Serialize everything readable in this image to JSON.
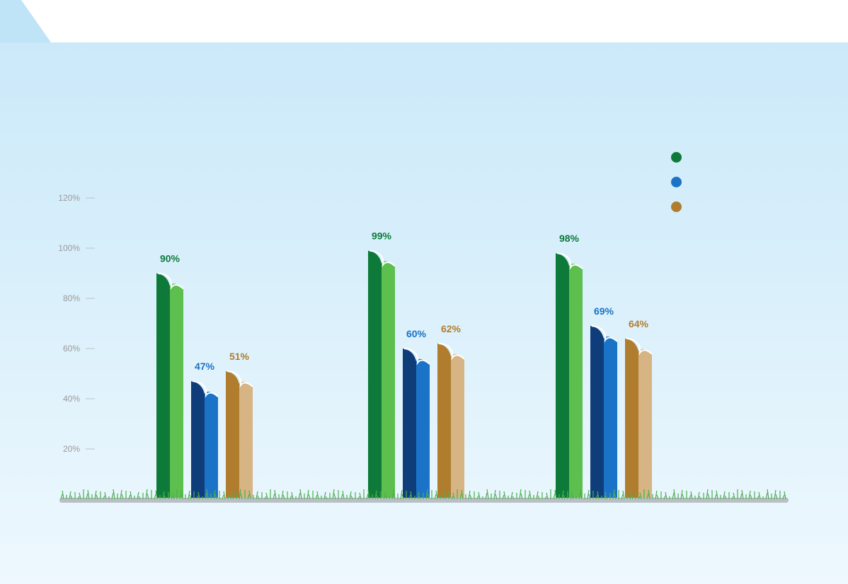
{
  "chart_data": {
    "type": "bar",
    "categories": [
      "",
      "",
      ""
    ],
    "series": [
      {
        "values": [
          90,
          99,
          98
        ],
        "color": "#0d7a3a",
        "label_color": "#0d7a3a",
        "light": "#5cbf4e"
      },
      {
        "values": [
          47,
          60,
          69
        ],
        "color": "#0f3d7a",
        "label_color": "#1a73c4",
        "light": "#1b73c8"
      },
      {
        "values": [
          51,
          62,
          64
        ],
        "color": "#b07d2e",
        "label_color": "#b07d2e",
        "light": "#d6b483"
      }
    ],
    "value_labels": [
      [
        "90%",
        "99%",
        "98%"
      ],
      [
        "47%",
        "60%",
        "69%"
      ],
      [
        "51%",
        "62%",
        "64%"
      ]
    ],
    "yticks": [
      {
        "value": 20,
        "label": "20%"
      },
      {
        "value": 40,
        "label": "40%"
      },
      {
        "value": 60,
        "label": "60%"
      },
      {
        "value": 80,
        "label": "80%"
      },
      {
        "value": 100,
        "label": "100%"
      },
      {
        "value": 120,
        "label": "120%"
      }
    ],
    "ylim": [
      0,
      120
    ],
    "grid": false,
    "legend_position": "top-right",
    "title": "",
    "xlabel": "",
    "ylabel": ""
  },
  "legend": {
    "colors": [
      "#0d7a3a",
      "#1a73c4",
      "#b07d2e"
    ]
  }
}
